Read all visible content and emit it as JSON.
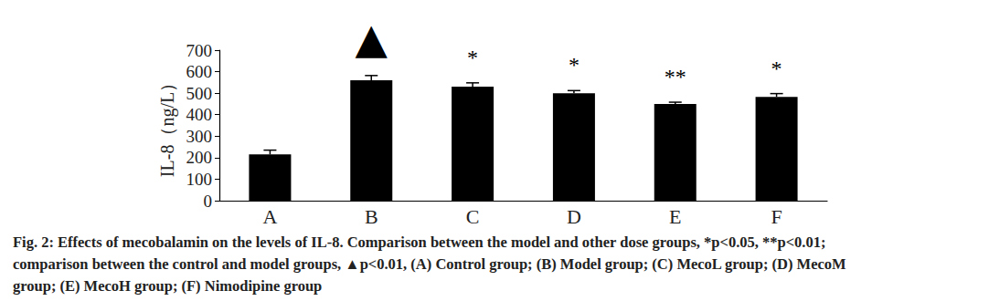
{
  "chart_data": {
    "type": "bar",
    "y_label": "IL-8（ng/L）",
    "categories": [
      "A",
      "B",
      "C",
      "D",
      "E",
      "F"
    ],
    "values": [
      215,
      560,
      530,
      500,
      450,
      483
    ],
    "errors": [
      20,
      22,
      18,
      12,
      8,
      15
    ],
    "significance": [
      null,
      "▲",
      "*",
      "*",
      "**",
      "*"
    ],
    "color": "#000000",
    "ylim": [
      0,
      700
    ],
    "yticks": [
      0,
      100,
      200,
      300,
      400,
      500,
      600,
      700
    ],
    "grid": false,
    "caption": [
      "Fig. 2: Effects of mecobalamin on the levels of IL-8. Comparison between the model and other dose groups, *p<0.05, **p<0.01;",
      "comparison between the control and model groups, ▲p<0.01, (A) Control group; (B) Model group; (C) MecoL group; (D) MecoM",
      "group; (E) MecoH group; (F) Nimodipine group"
    ]
  }
}
